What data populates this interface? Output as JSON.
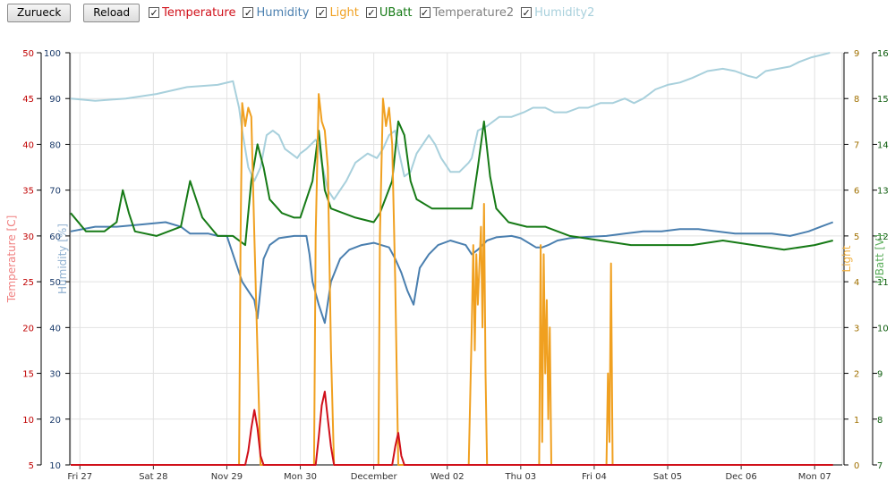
{
  "toolbar": {
    "back_label": "Zurueck",
    "reload_label": "Reload",
    "toggles": [
      {
        "label": "Temperature",
        "checked": true,
        "color": "#d0101a"
      },
      {
        "label": "Humidity",
        "checked": true,
        "color": "#4a7faf"
      },
      {
        "label": "Light",
        "checked": true,
        "color": "#f0a020"
      },
      {
        "label": "UBatt",
        "checked": true,
        "color": "#167a16"
      },
      {
        "label": "Temperature2",
        "checked": true,
        "color": "#808080"
      },
      {
        "label": "Humidity2",
        "checked": true,
        "color": "#a8d0dc"
      }
    ]
  },
  "chart_data": {
    "type": "line",
    "x_unit": "hours since first tick (Fri 27 00:00)",
    "x_range": [
      -3,
      249
    ],
    "x_ticks": [
      {
        "x": 0,
        "label": "Fri 27"
      },
      {
        "x": 24,
        "label": "Sat 28"
      },
      {
        "x": 48,
        "label": "Nov 29"
      },
      {
        "x": 72,
        "label": "Mon 30"
      },
      {
        "x": 96,
        "label": "December"
      },
      {
        "x": 120,
        "label": "Wed 02"
      },
      {
        "x": 144,
        "label": "Thu 03"
      },
      {
        "x": 168,
        "label": "Fri 04"
      },
      {
        "x": 192,
        "label": "Sat 05"
      },
      {
        "x": 216,
        "label": "Dec 06"
      },
      {
        "x": 240,
        "label": "Mon 07"
      }
    ],
    "axes": {
      "temperature": {
        "title": "Temperature [C]",
        "range": [
          5,
          50
        ],
        "ticks": [
          5,
          10,
          15,
          20,
          25,
          30,
          35,
          40,
          45,
          50
        ],
        "color": "#c00000",
        "title_color": "#f08080"
      },
      "humidity": {
        "title": "Humidity [%]",
        "range": [
          10,
          100
        ],
        "ticks": [
          10,
          20,
          30,
          40,
          50,
          60,
          70,
          80,
          90,
          100
        ],
        "color": "#1a3a6a",
        "title_color": "#8fb0d0"
      },
      "light": {
        "title": "Light",
        "range": [
          0,
          9
        ],
        "ticks": [
          0,
          1,
          2,
          3,
          4,
          5,
          6,
          7,
          8,
          9
        ],
        "color": "#a07000",
        "title_color": "#f0b040"
      },
      "ubatt": {
        "title": "UBatt [V]",
        "range": [
          7,
          16
        ],
        "ticks": [
          7,
          8,
          9,
          10,
          11,
          12,
          13,
          14,
          15,
          16
        ],
        "color": "#0a5a0a",
        "title_color": "#60b060"
      }
    },
    "series": [
      {
        "name": "Humidity2",
        "axis": "humidity",
        "color": "#a8d0dc",
        "points": [
          [
            -3,
            90
          ],
          [
            5,
            89.5
          ],
          [
            15,
            90
          ],
          [
            25,
            91
          ],
          [
            35,
            92.5
          ],
          [
            45,
            93
          ],
          [
            50,
            93.8
          ],
          [
            52,
            88
          ],
          [
            53,
            83
          ],
          [
            55,
            75
          ],
          [
            57,
            72
          ],
          [
            59,
            75
          ],
          [
            61,
            82
          ],
          [
            63,
            83
          ],
          [
            65,
            82
          ],
          [
            67,
            79
          ],
          [
            69,
            78
          ],
          [
            71,
            77
          ],
          [
            72,
            78
          ],
          [
            74,
            79
          ],
          [
            77,
            81
          ],
          [
            78,
            80
          ],
          [
            79,
            76
          ],
          [
            81,
            70
          ],
          [
            83,
            68
          ],
          [
            85,
            70
          ],
          [
            87,
            72
          ],
          [
            90,
            76
          ],
          [
            94,
            78
          ],
          [
            97,
            77
          ],
          [
            99,
            79
          ],
          [
            101,
            82
          ],
          [
            103,
            83
          ],
          [
            104,
            79
          ],
          [
            106,
            73
          ],
          [
            108,
            74
          ],
          [
            110,
            78
          ],
          [
            112,
            80
          ],
          [
            114,
            82
          ],
          [
            116,
            80
          ],
          [
            118,
            77
          ],
          [
            121,
            74
          ],
          [
            124,
            74
          ],
          [
            127,
            76
          ],
          [
            128,
            77
          ],
          [
            130,
            83
          ],
          [
            133,
            84
          ],
          [
            137,
            86
          ],
          [
            141,
            86
          ],
          [
            145,
            87
          ],
          [
            148,
            88
          ],
          [
            152,
            88
          ],
          [
            155,
            87
          ],
          [
            159,
            87
          ],
          [
            163,
            88
          ],
          [
            166,
            88
          ],
          [
            170,
            89
          ],
          [
            174,
            89
          ],
          [
            178,
            90
          ],
          [
            181,
            89
          ],
          [
            184,
            90
          ],
          [
            188,
            92
          ],
          [
            192,
            93
          ],
          [
            196,
            93.5
          ],
          [
            200,
            94.5
          ],
          [
            205,
            96
          ],
          [
            210,
            96.5
          ],
          [
            214,
            96
          ],
          [
            218,
            95
          ],
          [
            221,
            94.5
          ],
          [
            224,
            96
          ],
          [
            228,
            96.5
          ],
          [
            232,
            97
          ],
          [
            235,
            98
          ],
          [
            239,
            99
          ],
          [
            242,
            99.5
          ],
          [
            245,
            100
          ]
        ]
      },
      {
        "name": "Humidity",
        "axis": "humidity",
        "color": "#4a7faf",
        "points": [
          [
            -3,
            61
          ],
          [
            5,
            62
          ],
          [
            12,
            62
          ],
          [
            20,
            62.5
          ],
          [
            28,
            63
          ],
          [
            33,
            62
          ],
          [
            36,
            60.5
          ],
          [
            42,
            60.5
          ],
          [
            45,
            60
          ],
          [
            48,
            60
          ],
          [
            51,
            54
          ],
          [
            53,
            50
          ],
          [
            55,
            48
          ],
          [
            57,
            46
          ],
          [
            58,
            42
          ],
          [
            60,
            55
          ],
          [
            62,
            58
          ],
          [
            65,
            59.5
          ],
          [
            70,
            60
          ],
          [
            74,
            60
          ],
          [
            75,
            56
          ],
          [
            76,
            50
          ],
          [
            78,
            45
          ],
          [
            80,
            41
          ],
          [
            82,
            50
          ],
          [
            85,
            55
          ],
          [
            88,
            57
          ],
          [
            92,
            58
          ],
          [
            96,
            58.5
          ],
          [
            101,
            57.5
          ],
          [
            103,
            55
          ],
          [
            105,
            52
          ],
          [
            107,
            48
          ],
          [
            109,
            45
          ],
          [
            111,
            53
          ],
          [
            114,
            56
          ],
          [
            117,
            58
          ],
          [
            121,
            59
          ],
          [
            126,
            58
          ],
          [
            128,
            56
          ],
          [
            130,
            57
          ],
          [
            133,
            59
          ],
          [
            136,
            59.7
          ],
          [
            141,
            60
          ],
          [
            144,
            59.5
          ],
          [
            149,
            57.5
          ],
          [
            151,
            57.5
          ],
          [
            153,
            58
          ],
          [
            156,
            59
          ],
          [
            160,
            59.5
          ],
          [
            166,
            59.8
          ],
          [
            172,
            60
          ],
          [
            178,
            60.5
          ],
          [
            184,
            61
          ],
          [
            190,
            61
          ],
          [
            196,
            61.5
          ],
          [
            202,
            61.5
          ],
          [
            208,
            61
          ],
          [
            214,
            60.5
          ],
          [
            220,
            60.5
          ],
          [
            226,
            60.5
          ],
          [
            232,
            60
          ],
          [
            238,
            61
          ],
          [
            242,
            62
          ],
          [
            246,
            63
          ]
        ]
      },
      {
        "name": "UBatt",
        "axis": "ubatt",
        "color": "#167a16",
        "points": [
          [
            -3,
            12.5
          ],
          [
            2,
            12.1
          ],
          [
            8,
            12.1
          ],
          [
            12,
            12.3
          ],
          [
            14,
            13.0
          ],
          [
            16,
            12.5
          ],
          [
            18,
            12.1
          ],
          [
            25,
            12.0
          ],
          [
            33,
            12.2
          ],
          [
            36,
            13.2
          ],
          [
            38,
            12.8
          ],
          [
            40,
            12.4
          ],
          [
            45,
            12.0
          ],
          [
            50,
            12.0
          ],
          [
            54,
            11.8
          ],
          [
            56,
            13.2
          ],
          [
            58,
            14.0
          ],
          [
            60,
            13.5
          ],
          [
            62,
            12.8
          ],
          [
            66,
            12.5
          ],
          [
            70,
            12.4
          ],
          [
            72,
            12.4
          ],
          [
            76,
            13.2
          ],
          [
            78,
            14.3
          ],
          [
            80,
            13.0
          ],
          [
            82,
            12.6
          ],
          [
            90,
            12.4
          ],
          [
            96,
            12.3
          ],
          [
            98,
            12.5
          ],
          [
            102,
            13.2
          ],
          [
            104,
            14.5
          ],
          [
            106,
            14.2
          ],
          [
            108,
            13.2
          ],
          [
            110,
            12.8
          ],
          [
            115,
            12.6
          ],
          [
            124,
            12.6
          ],
          [
            128,
            12.6
          ],
          [
            130,
            13.5
          ],
          [
            132,
            14.5
          ],
          [
            134,
            13.3
          ],
          [
            136,
            12.6
          ],
          [
            140,
            12.3
          ],
          [
            146,
            12.2
          ],
          [
            152,
            12.2
          ],
          [
            160,
            12.0
          ],
          [
            170,
            11.9
          ],
          [
            180,
            11.8
          ],
          [
            190,
            11.8
          ],
          [
            200,
            11.8
          ],
          [
            210,
            11.9
          ],
          [
            220,
            11.8
          ],
          [
            230,
            11.7
          ],
          [
            240,
            11.8
          ],
          [
            246,
            11.9
          ]
        ]
      },
      {
        "name": "Light",
        "axis": "light",
        "color": "#f0a020",
        "points": [
          [
            -3,
            0
          ],
          [
            52,
            0
          ],
          [
            52.5,
            5
          ],
          [
            53,
            7.9
          ],
          [
            54,
            7.4
          ],
          [
            55,
            7.8
          ],
          [
            56,
            7.6
          ],
          [
            57,
            5
          ],
          [
            59,
            0
          ],
          [
            76.5,
            0
          ],
          [
            77,
            5
          ],
          [
            78,
            8.1
          ],
          [
            79,
            7.5
          ],
          [
            80,
            7.3
          ],
          [
            81,
            6.5
          ],
          [
            82,
            2.5
          ],
          [
            83,
            0
          ],
          [
            97.5,
            0
          ],
          [
            98,
            5
          ],
          [
            99,
            8.0
          ],
          [
            100,
            7.4
          ],
          [
            101,
            7.8
          ],
          [
            102,
            7.0
          ],
          [
            103,
            4
          ],
          [
            104,
            0
          ],
          [
            127,
            0
          ],
          [
            128,
            3
          ],
          [
            128.5,
            4.8
          ],
          [
            129,
            2.5
          ],
          [
            129.5,
            4.6
          ],
          [
            130,
            3.5
          ],
          [
            131,
            5.2
          ],
          [
            131.5,
            3.0
          ],
          [
            132,
            5.7
          ],
          [
            132.5,
            2.0
          ],
          [
            133,
            0
          ],
          [
            150,
            0
          ],
          [
            150.5,
            4.8
          ],
          [
            151,
            0.5
          ],
          [
            151.5,
            4.6
          ],
          [
            152,
            2.0
          ],
          [
            152.5,
            3.6
          ],
          [
            153,
            1.0
          ],
          [
            153.5,
            3.0
          ],
          [
            154,
            0
          ],
          [
            172,
            0
          ],
          [
            172.5,
            2.0
          ],
          [
            173,
            0.5
          ],
          [
            173.5,
            4.4
          ],
          [
            174,
            0
          ]
        ]
      },
      {
        "name": "Temperature",
        "axis": "temperature",
        "color": "#d0101a",
        "points": [
          [
            -3,
            5
          ],
          [
            54,
            5
          ],
          [
            55,
            6.5
          ],
          [
            56,
            9
          ],
          [
            57,
            11
          ],
          [
            58,
            9
          ],
          [
            59,
            6
          ],
          [
            60,
            5
          ],
          [
            77,
            5
          ],
          [
            78,
            8
          ],
          [
            79,
            11.5
          ],
          [
            80,
            13
          ],
          [
            81,
            10
          ],
          [
            82,
            7
          ],
          [
            83,
            5
          ],
          [
            102,
            5
          ],
          [
            103,
            7
          ],
          [
            104,
            8.5
          ],
          [
            105,
            6
          ],
          [
            106,
            5
          ],
          [
            246,
            5
          ]
        ]
      },
      {
        "name": "Temperature2",
        "axis": "temperature",
        "color": "#808080",
        "points": []
      }
    ]
  }
}
